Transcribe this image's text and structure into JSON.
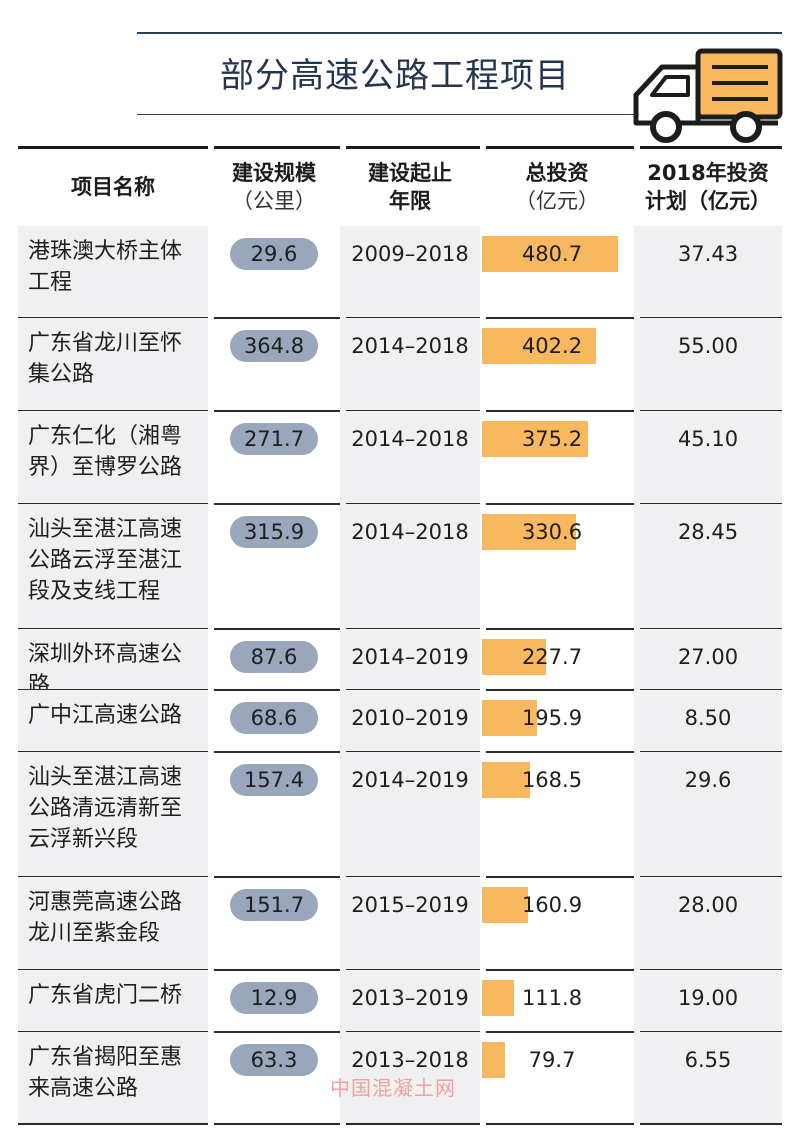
{
  "title": "部分高速公路工程项目",
  "headers": {
    "name": "项目名称",
    "scale_line1": "建设规模",
    "scale_line2": "（公里）",
    "years_line1": "建设起止",
    "years_line2": "年限",
    "inv_line1": "总投资",
    "inv_line2": "（亿元）",
    "plan_line1": "2018年投资",
    "plan_line2": "计划（亿元）"
  },
  "rows": [
    {
      "name": "港珠澳大桥主体工程",
      "scale": "29.6",
      "years": "2009–2018",
      "investment": "480.7",
      "investment_value": 480.7,
      "plan": "37.43"
    },
    {
      "name": "广东省龙川至怀集公路",
      "scale": "364.8",
      "years": "2014–2018",
      "investment": "402.2",
      "investment_value": 402.2,
      "plan": "55.00"
    },
    {
      "name": "广东仁化（湘粤界）至博罗公路",
      "scale": "271.7",
      "years": "2014–2018",
      "investment": "375.2",
      "investment_value": 375.2,
      "plan": "45.10"
    },
    {
      "name": "汕头至湛江高速公路云浮至湛江段及支线工程",
      "scale": "315.9",
      "years": "2014–2018",
      "investment": "330.6",
      "investment_value": 330.6,
      "plan": "28.45"
    },
    {
      "name": "深圳外环高速公路",
      "scale": "87.6",
      "years": "2014–2019",
      "investment": "227.7",
      "investment_value": 227.7,
      "plan": "27.00"
    },
    {
      "name": "广中江高速公路",
      "scale": "68.6",
      "years": "2010–2019",
      "investment": "195.9",
      "investment_value": 195.9,
      "plan": "8.50"
    },
    {
      "name": "汕头至湛江高速公路清远清新至云浮新兴段",
      "scale": "157.4",
      "years": "2014–2019",
      "investment": "168.5",
      "investment_value": 168.5,
      "plan": "29.6"
    },
    {
      "name": "河惠莞高速公路龙川至紫金段",
      "scale": "151.7",
      "years": "2015–2019",
      "investment": "160.9",
      "investment_value": 160.9,
      "plan": "28.00"
    },
    {
      "name": "广东省虎门二桥",
      "scale": "12.9",
      "years": "2013–2019",
      "investment": "111.8",
      "investment_value": 111.8,
      "plan": "19.00"
    },
    {
      "name": "广东省揭阳至惠来高速公路",
      "scale": "63.3",
      "years": "2013–2018",
      "investment": "79.7",
      "investment_value": 79.7,
      "plan": "6.55"
    }
  ],
  "watermark": "中国混凝土网",
  "icon": "truck-icon",
  "colors": {
    "pill": "#9aa6bb",
    "bar": "#f8b860",
    "truck_body": "#f8b860",
    "title": "#26364f"
  }
}
